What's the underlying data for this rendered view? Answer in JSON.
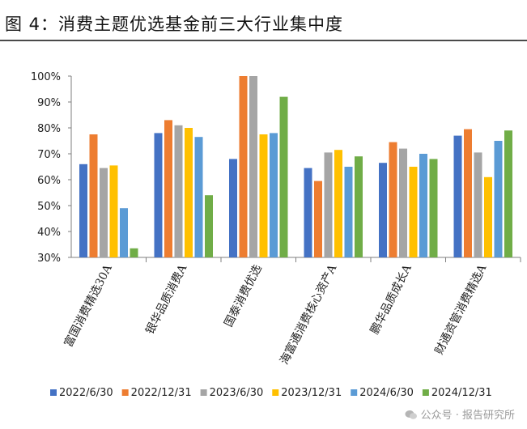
{
  "figure": {
    "title": "图 4：消费主题优选基金前三大行业集中度",
    "watermark": "公众号 · 报告研究所"
  },
  "chart_data": {
    "type": "bar",
    "categories": [
      "富国消费精选30A",
      "银华品质消费A",
      "国泰消费优选",
      "海富通消费核心资产A",
      "鹏华品质成长A",
      "财通资管消费精选A"
    ],
    "series": [
      {
        "name": "2022/6/30",
        "color": "#4472C4",
        "values": [
          66,
          78,
          68,
          64.5,
          66.5,
          77
        ]
      },
      {
        "name": "2022/12/31",
        "color": "#ED7D31",
        "values": [
          77.5,
          83,
          100,
          59.5,
          74.5,
          79.5
        ]
      },
      {
        "name": "2023/6/30",
        "color": "#A5A5A5",
        "values": [
          64.5,
          81,
          100,
          70.5,
          72,
          70.5
        ]
      },
      {
        "name": "2023/12/31",
        "color": "#FFC000",
        "values": [
          65.5,
          80,
          77.5,
          71.5,
          65,
          61
        ]
      },
      {
        "name": "2024/6/30",
        "color": "#5B9BD5",
        "values": [
          49,
          76.5,
          78,
          65,
          70,
          75
        ]
      },
      {
        "name": "2024/12/31",
        "color": "#70AD47",
        "values": [
          33.5,
          54,
          92,
          69,
          68,
          79
        ]
      }
    ],
    "ylim": [
      30,
      100
    ],
    "yticks": [
      "30%",
      "40%",
      "50%",
      "60%",
      "70%",
      "80%",
      "90%",
      "100%"
    ],
    "legend_position": "bottom",
    "grid": false
  }
}
